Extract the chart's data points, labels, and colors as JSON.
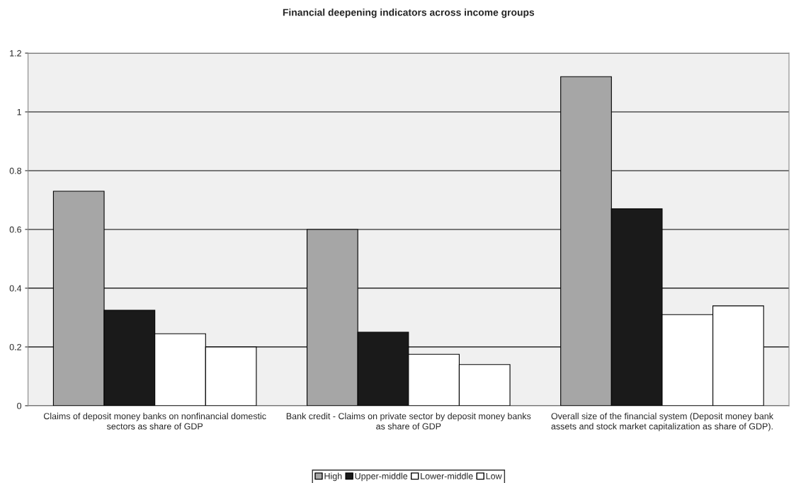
{
  "chart_data": {
    "type": "bar",
    "title": "Financial deepening indicators across income groups",
    "categories": [
      "Claims of deposit money banks on nonfinancial domestic sectors as share of GDP",
      "Bank credit - Claims on private sector by deposit money banks as share of GDP",
      "Overall size of the financial system (Deposit money bank assets and stock market capitalization as share of GDP)."
    ],
    "series": [
      {
        "name": "High",
        "color": "#a6a6a6",
        "values": [
          0.73,
          0.6,
          1.12
        ]
      },
      {
        "name": "Upper-middle",
        "color": "#1a1a1a",
        "values": [
          0.325,
          0.25,
          0.67
        ]
      },
      {
        "name": "Lower-middle",
        "color": "#ffffff",
        "values": [
          0.245,
          0.175,
          0.31
        ]
      },
      {
        "name": "Low",
        "color": "#ffffff",
        "values": [
          0.2,
          0.14,
          0.34
        ]
      }
    ],
    "ylim": [
      0,
      1.2
    ],
    "yticks": [
      0,
      0.2,
      0.4,
      0.6,
      0.8,
      1,
      1.2
    ],
    "grid": "y",
    "legend": "bottom"
  }
}
